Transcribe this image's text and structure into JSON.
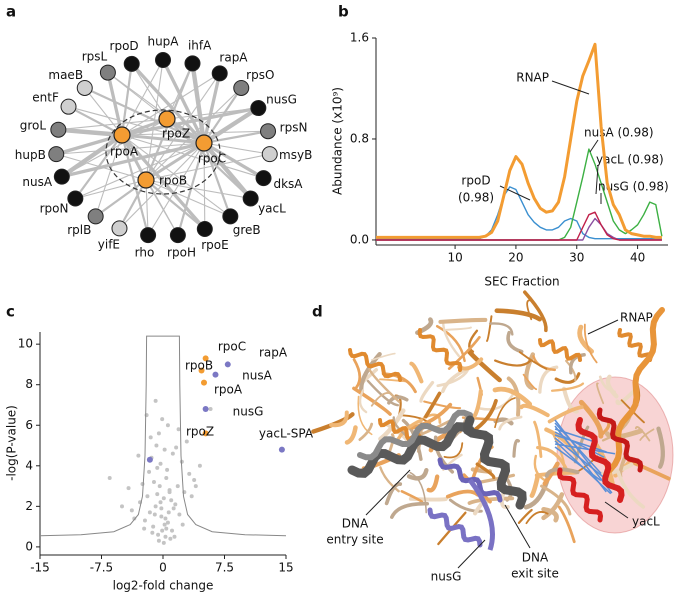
{
  "panel_labels": [
    "a",
    "b",
    "c",
    "d"
  ],
  "network": {
    "core_color": "#f39c32",
    "core": [
      {
        "label": "rpoA"
      },
      {
        "label": "rpoZ"
      },
      {
        "label": "rpoC"
      },
      {
        "label": "rpoB"
      }
    ],
    "partners": [
      {
        "label": "rpoD",
        "color": "#111111"
      },
      {
        "label": "hupA",
        "color": "#111111"
      },
      {
        "label": "ihfA",
        "color": "#111111"
      },
      {
        "label": "rapA",
        "color": "#111111"
      },
      {
        "label": "rpsO",
        "color": "#7f7f7f"
      },
      {
        "label": "nusG",
        "color": "#111111"
      },
      {
        "label": "rpsN",
        "color": "#7f7f7f"
      },
      {
        "label": "msyB",
        "color": "#cfcfcf"
      },
      {
        "label": "dksA",
        "color": "#111111"
      },
      {
        "label": "yacL",
        "color": "#111111"
      },
      {
        "label": "greB",
        "color": "#111111"
      },
      {
        "label": "rpoE",
        "color": "#111111"
      },
      {
        "label": "rpoH",
        "color": "#111111"
      },
      {
        "label": "rho",
        "color": "#111111"
      },
      {
        "label": "yifE",
        "color": "#cfcfcf"
      },
      {
        "label": "rplB",
        "color": "#7f7f7f"
      },
      {
        "label": "rpoN",
        "color": "#111111"
      },
      {
        "label": "nusA",
        "color": "#111111"
      },
      {
        "label": "hupB",
        "color": "#7f7f7f"
      },
      {
        "label": "groL",
        "color": "#7f7f7f"
      },
      {
        "label": "entF",
        "color": "#cfcfcf"
      },
      {
        "label": "maeB",
        "color": "#cfcfcf"
      },
      {
        "label": "rpsL",
        "color": "#7f7f7f"
      }
    ]
  },
  "chart_data": [
    {
      "type": "line",
      "xlabel": "SEC Fraction",
      "ylabel": "Abundance (x10⁹)",
      "xlim": [
        -3,
        45
      ],
      "ylim": [
        -0.04,
        1.6
      ],
      "xticks": [
        10,
        20,
        30,
        40
      ],
      "yticks": [
        {
          "value": 0,
          "label": "0.0"
        },
        0.8,
        1.6
      ],
      "x": [
        -3,
        -2,
        -1,
        0,
        1,
        2,
        3,
        4,
        5,
        6,
        7,
        8,
        9,
        10,
        11,
        12,
        13,
        14,
        15,
        16,
        17,
        18,
        19,
        20,
        21,
        22,
        23,
        24,
        25,
        26,
        27,
        28,
        29,
        30,
        31,
        32,
        33,
        34,
        35,
        36,
        37,
        38,
        39,
        40,
        41,
        42,
        43,
        44
      ],
      "series": [
        {
          "label": [
            "rpoD",
            "(0.98)"
          ],
          "color": "#3a8fd0",
          "values": [
            0.01,
            0.01,
            0.01,
            0.01,
            0.01,
            0.01,
            0.01,
            0.01,
            0.01,
            0.01,
            0.01,
            0.01,
            0.01,
            0.01,
            0.01,
            0.01,
            0.01,
            0.01,
            0.03,
            0.08,
            0.2,
            0.35,
            0.42,
            0.4,
            0.3,
            0.2,
            0.14,
            0.1,
            0.08,
            0.08,
            0.1,
            0.15,
            0.17,
            0.15,
            0.05,
            0.02,
            0.01,
            0.01,
            0.01,
            0.01,
            0.01,
            0.01,
            0.01,
            0.01,
            0.01,
            0.01,
            0.01,
            0.01
          ]
        },
        {
          "label": [
            "nusA (0.98)"
          ],
          "color": "#3cb043",
          "values": [
            0,
            0,
            0,
            0,
            0,
            0,
            0,
            0,
            0,
            0,
            0,
            0,
            0,
            0,
            0,
            0,
            0,
            0,
            0,
            0,
            0,
            0,
            0,
            0,
            0,
            0,
            0,
            0,
            0,
            0,
            0,
            0.02,
            0.1,
            0.3,
            0.5,
            0.72,
            0.6,
            0.45,
            0.3,
            0.15,
            0.08,
            0.05,
            0.08,
            0.12,
            0.2,
            0.3,
            0.28,
            0.03
          ]
        },
        {
          "label": [
            "nusG (0.98)"
          ],
          "color": "#8a4fa0",
          "values": [
            0,
            0,
            0,
            0,
            0,
            0,
            0,
            0,
            0,
            0,
            0,
            0,
            0,
            0,
            0,
            0,
            0,
            0,
            0,
            0,
            0,
            0,
            0,
            0,
            0,
            0,
            0,
            0,
            0,
            0,
            0,
            0,
            0,
            0,
            0,
            0.1,
            0.17,
            0.12,
            0.05,
            0.02,
            0,
            0,
            0,
            0,
            0,
            0,
            0,
            0
          ]
        },
        {
          "label": [
            "yacL (0.98)"
          ],
          "color": "#c0204a",
          "values": [
            0,
            0,
            0,
            0,
            0,
            0,
            0,
            0,
            0,
            0,
            0,
            0,
            0,
            0,
            0,
            0,
            0,
            0,
            0,
            0,
            0,
            0,
            0,
            0,
            0,
            0,
            0,
            0,
            0,
            0,
            0,
            0,
            0,
            0,
            0.1,
            0.2,
            0.22,
            0.12,
            0.04,
            0.01,
            0,
            0,
            0,
            0,
            0,
            0,
            0,
            0
          ]
        },
        {
          "label": [
            "RNAP"
          ],
          "color": "#f39c32",
          "values": [
            0.02,
            0.02,
            0.02,
            0.02,
            0.02,
            0.02,
            0.02,
            0.02,
            0.02,
            0.02,
            0.02,
            0.02,
            0.02,
            0.02,
            0.02,
            0.02,
            0.02,
            0.02,
            0.03,
            0.06,
            0.15,
            0.35,
            0.55,
            0.66,
            0.6,
            0.45,
            0.33,
            0.25,
            0.22,
            0.23,
            0.3,
            0.5,
            0.8,
            1.1,
            1.3,
            1.42,
            1.55,
            0.9,
            0.45,
            0.28,
            0.2,
            0.08,
            0.05,
            0.04,
            0.03,
            0.03,
            0.02,
            0.02
          ]
        }
      ]
    },
    {
      "type": "scatter",
      "xlabel": "log2-fold change",
      "ylabel": "-log(P-value)",
      "xlim": [
        -15,
        15
      ],
      "ylim": [
        -0.4,
        10.6
      ],
      "xticks": [
        -15,
        -7.5,
        0,
        7.5,
        15
      ],
      "yticks": [
        0,
        2,
        4,
        6,
        8,
        10
      ],
      "points": {
        "color": "#c4c4c4",
        "x": [
          -0.5,
          0.3,
          -1.2,
          1.1,
          -0.2,
          0.6,
          -0.9,
          0.1,
          -1.6,
          1.5,
          -0.4,
          0.8,
          -2.2,
          2.0,
          -0.1,
          0.4,
          -0.7,
          1.3,
          -1.9,
          0.9,
          -0.3,
          0.2,
          -1.1,
          1.8,
          -2.8,
          2.6,
          -3.5,
          3.2,
          -0.6,
          0.5,
          -1.4,
          1.0,
          -0.8,
          0.7,
          -2.5,
          2.3,
          -4.2,
          3.8,
          -0.2,
          0.1,
          -1.0,
          1.2,
          -1.7,
          1.6,
          -3.0,
          2.9,
          -5.0,
          4.5,
          -0.5,
          0.6,
          -2.0,
          1.9,
          -0.9,
          0.4,
          -6.5,
          5.8,
          -0.3,
          0.3,
          -1.3,
          1.4,
          -2.3,
          2.4,
          -3.8,
          3.5,
          -0.7,
          0.8,
          -1.5,
          4.0,
          -0.1,
          0.2
        ],
        "values": [
          0.3,
          0.5,
          1.0,
          0.8,
          1.5,
          1.2,
          2.0,
          2.4,
          1.7,
          2.1,
          3.0,
          2.8,
          1.3,
          1.6,
          0.8,
          3.4,
          2.6,
          1.9,
          2.5,
          0.4,
          4.1,
          1.1,
          3.2,
          3.0,
          2.2,
          2.7,
          1.4,
          3.6,
          0.6,
          3.8,
          4.4,
          2.3,
          5.0,
          1.7,
          3.1,
          4.2,
          2.9,
          3.3,
          1.9,
          0.2,
          1.6,
          4.6,
          3.7,
          4.9,
          4.5,
          5.2,
          2.0,
          4.0,
          5.6,
          6.0,
          6.5,
          5.8,
          7.2,
          0.9,
          3.4,
          6.8,
          2.2,
          1.4,
          0.7,
          0.5,
          0.9,
          1.1,
          1.8,
          2.5,
          3.9,
          2.7,
          5.4,
          3.0,
          6.3,
          4.8
        ]
      },
      "highlights": [
        {
          "label": "rpoC",
          "x": 5.2,
          "y": 9.3,
          "color": "#f39c32"
        },
        {
          "label": "rapA",
          "x": 7.9,
          "y": 9.0,
          "color": "#7b78c4"
        },
        {
          "label": "rpoB",
          "x": 4.7,
          "y": 8.7,
          "color": "#f39c32"
        },
        {
          "label": "nusA",
          "x": 6.4,
          "y": 8.5,
          "color": "#7b78c4"
        },
        {
          "label": "rpoA",
          "x": 5.0,
          "y": 8.1,
          "color": "#f39c32"
        },
        {
          "label": "nusG",
          "x": 5.2,
          "y": 6.8,
          "color": "#7b78c4"
        },
        {
          "label": "rpoZ",
          "x": 5.2,
          "y": 5.6,
          "color": "#f39c32"
        },
        {
          "label": "yacL-SPA",
          "x": 14.5,
          "y": 4.8,
          "color": "#7b78c4"
        },
        {
          "x": -1.6,
          "y": 4.3,
          "color": "#7b78c4"
        }
      ],
      "curve": {
        "color": "#888888",
        "x": [
          -15,
          -10,
          -6,
          -4,
          -3,
          -2.5,
          -2.2,
          -2.05,
          -2,
          2,
          2.05,
          2.2,
          2.5,
          3,
          4,
          6,
          10,
          15
        ],
        "y": [
          0.55,
          0.6,
          0.75,
          1.1,
          1.6,
          2.5,
          4.5,
          8,
          10.4,
          10.4,
          8,
          4.5,
          2.5,
          1.6,
          1.1,
          0.75,
          0.6,
          0.55
        ]
      }
    }
  ],
  "structure": {
    "labels": [
      {
        "lines": [
          "RNAP"
        ]
      },
      {
        "lines": [
          "DNA",
          "entry site"
        ]
      },
      {
        "lines": [
          "nusG"
        ]
      },
      {
        "lines": [
          "DNA",
          "exit site"
        ]
      },
      {
        "lines": [
          "yacL"
        ]
      }
    ]
  }
}
